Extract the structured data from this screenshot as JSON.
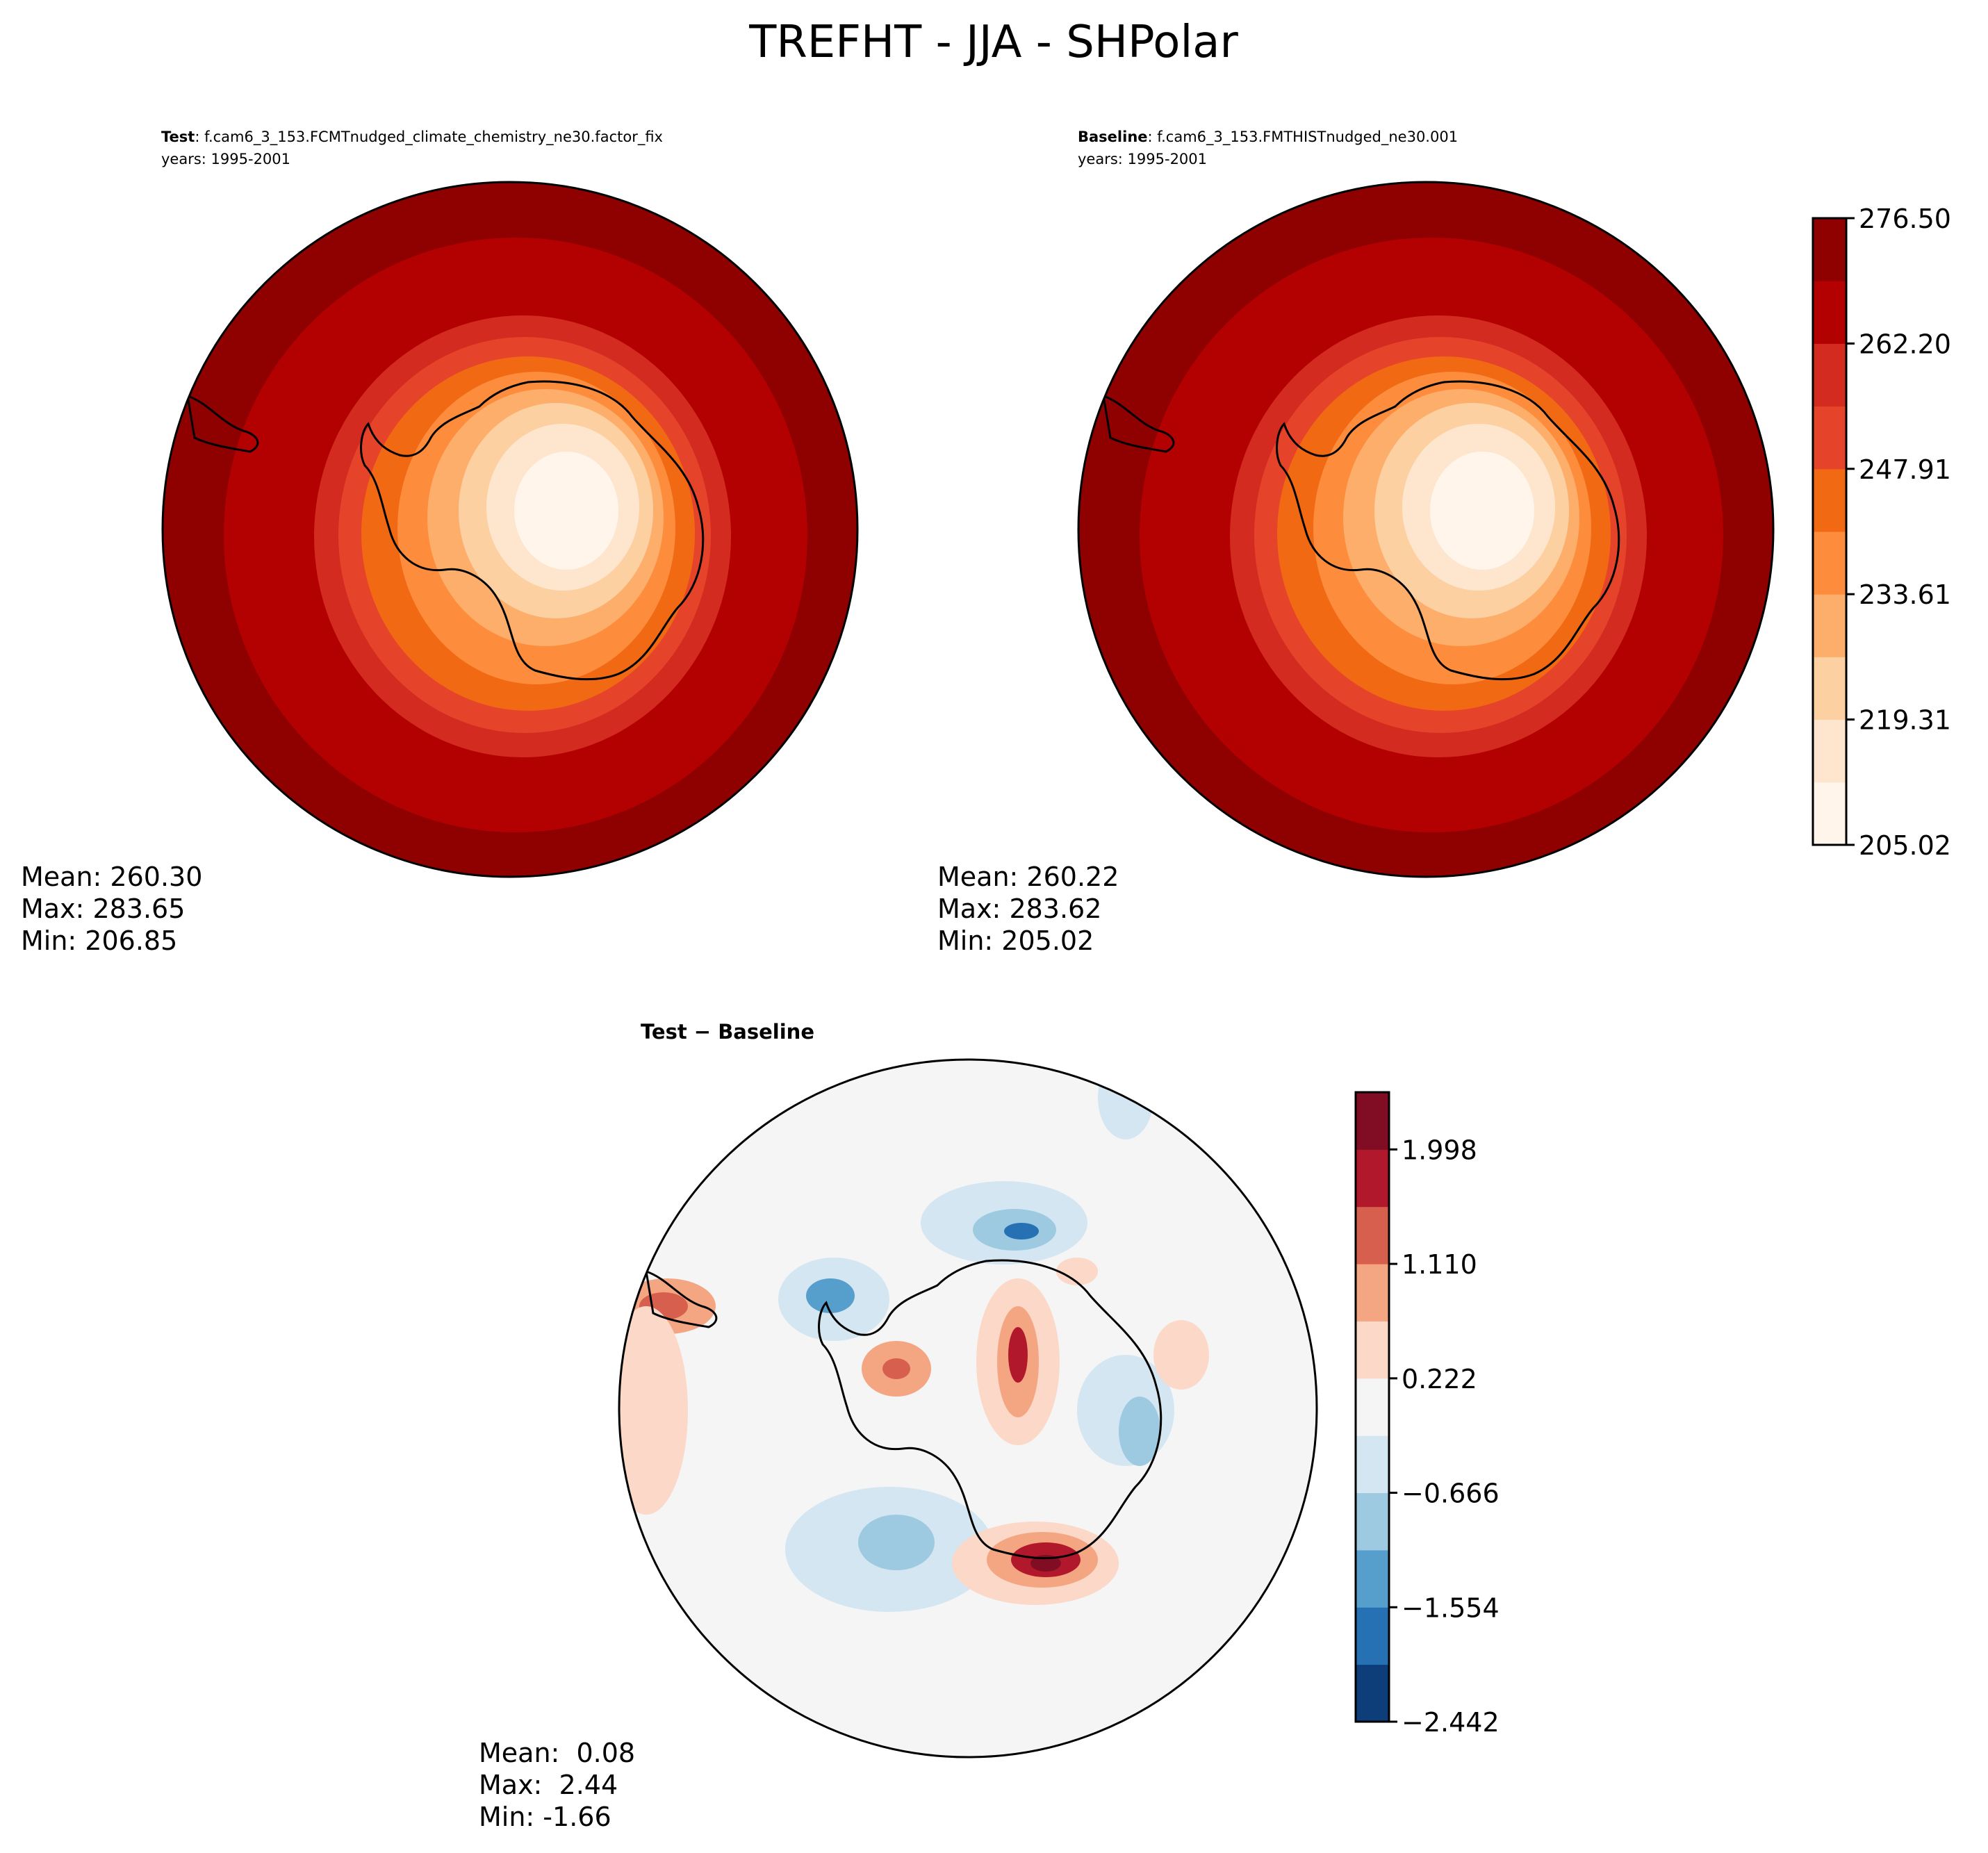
{
  "figure": {
    "title": "TREFHT - JJA - SHPolar"
  },
  "panels": {
    "test": {
      "label": "Test",
      "case": ": f.cam6_3_153.FCMTnudged_climate_chemistry_ne30.factor_fix",
      "years": "years: 1995-2001",
      "mean": "Mean: 260.30",
      "max": "Max: 283.65",
      "min": "Min: 206.85"
    },
    "baseline": {
      "label": "Baseline",
      "case": ": f.cam6_3_153.FMTHISTnudged_ne30.001",
      "years": "years: 1995-2001",
      "mean": "Mean: 260.22",
      "max": "Max: 283.62",
      "min": "Min: 205.02"
    },
    "diff": {
      "label": "Test − Baseline",
      "mean": "Mean:  0.08",
      "max": "Max:  2.44",
      "min": "Min: -1.66"
    }
  },
  "colorbars": {
    "main": {
      "ticks": [
        "205.02",
        "219.31",
        "233.61",
        "247.91",
        "262.20",
        "276.50"
      ],
      "colors": [
        "#fff5eb",
        "#fee6ce",
        "#fdd0a2",
        "#fdae6b",
        "#fd8d3c",
        "#f16913",
        "#e6442a",
        "#d42b20",
        "#b30000",
        "#8f0000"
      ]
    },
    "diff": {
      "ticks": [
        "−2.442",
        "−1.554",
        "−0.666",
        "0.222",
        "1.110",
        "1.998"
      ],
      "colors": [
        "#0d3e7a",
        "#2671b4",
        "#569fcd",
        "#9dcae1",
        "#d4e6f1",
        "#f5f5f5",
        "#fbd8c8",
        "#f4a582",
        "#d6604d",
        "#b2182b",
        "#800d23"
      ]
    }
  },
  "chart_data": [
    {
      "type": "heatmap",
      "title": "Test",
      "projection": "south polar stereographic",
      "stats": {
        "mean": 260.3,
        "max": 283.65,
        "min": 206.85
      },
      "levels": [
        205.02,
        219.31,
        233.61,
        247.91,
        262.2,
        276.5
      ]
    },
    {
      "type": "heatmap",
      "title": "Baseline",
      "projection": "south polar stereographic",
      "stats": {
        "mean": 260.22,
        "max": 283.62,
        "min": 205.02
      },
      "levels": [
        205.02,
        219.31,
        233.61,
        247.91,
        262.2,
        276.5
      ]
    },
    {
      "type": "heatmap",
      "title": "Test − Baseline",
      "projection": "south polar stereographic",
      "stats": {
        "mean": 0.08,
        "max": 2.44,
        "min": -1.66
      },
      "levels": [
        -2.442,
        -1.554,
        -0.666,
        0.222,
        1.11,
        1.998
      ]
    }
  ]
}
